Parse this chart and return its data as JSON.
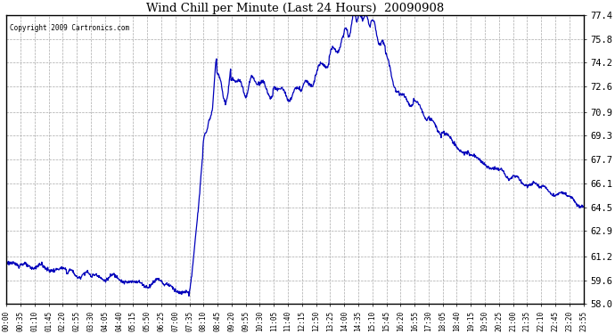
{
  "title": "Wind Chill per Minute (Last 24 Hours)  20090908",
  "copyright_text": "Copyright 2009 Cartronics.com",
  "line_color": "#0000bb",
  "bg_color": "#ffffff",
  "plot_bg_color": "#ffffff",
  "grid_color": "#aaaaaa",
  "ylim": [
    58.0,
    77.4
  ],
  "yticks": [
    58.0,
    59.6,
    61.2,
    62.9,
    64.5,
    66.1,
    67.7,
    69.3,
    70.9,
    72.6,
    74.2,
    75.8,
    77.4
  ],
  "xtick_labels": [
    "00:00",
    "00:35",
    "01:10",
    "01:45",
    "02:20",
    "02:55",
    "03:30",
    "04:05",
    "04:40",
    "05:15",
    "05:50",
    "06:25",
    "07:00",
    "07:35",
    "08:10",
    "08:45",
    "09:20",
    "09:55",
    "10:30",
    "11:05",
    "11:40",
    "12:15",
    "12:50",
    "13:25",
    "14:00",
    "14:35",
    "15:10",
    "15:45",
    "16:20",
    "16:55",
    "17:30",
    "18:05",
    "18:40",
    "19:15",
    "19:50",
    "20:25",
    "21:00",
    "21:35",
    "22:10",
    "22:45",
    "23:20",
    "23:55"
  ],
  "num_points": 1440,
  "figsize": [
    6.9,
    3.75
  ],
  "dpi": 100
}
